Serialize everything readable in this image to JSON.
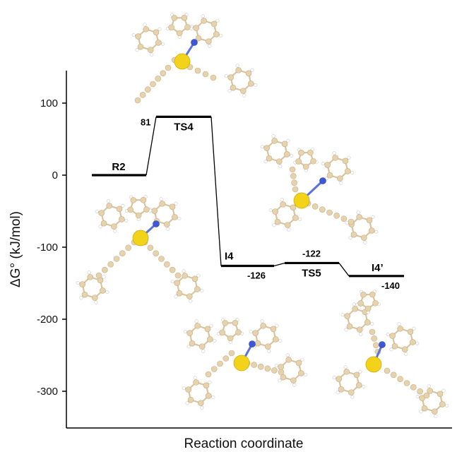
{
  "chart_data": {
    "type": "line",
    "title": "",
    "xlabel": "Reaction coordinate",
    "ylabel": "ΔG° (kJ/mol)",
    "ylim": [
      -345,
      140
    ],
    "yticks": [
      100,
      0,
      -100,
      -200,
      -300
    ],
    "grid": false,
    "legend": "none",
    "line_color": "#000000",
    "states": [
      {
        "name": "R2",
        "value": 0,
        "value_label": ""
      },
      {
        "name": "TS4",
        "value": 81,
        "value_label": "81"
      },
      {
        "name": "I4",
        "value": -126,
        "value_label": "-126"
      },
      {
        "name": "TS5",
        "value": -122,
        "value_label": "-122"
      },
      {
        "name": "I4’",
        "value": -140,
        "value_label": "-140"
      }
    ]
  },
  "structure_colors": {
    "carbon": "#e6d2ac",
    "hydrogen": "#ffffff",
    "nitrogen": "#3c58d8",
    "gold": "#f3d21a"
  }
}
